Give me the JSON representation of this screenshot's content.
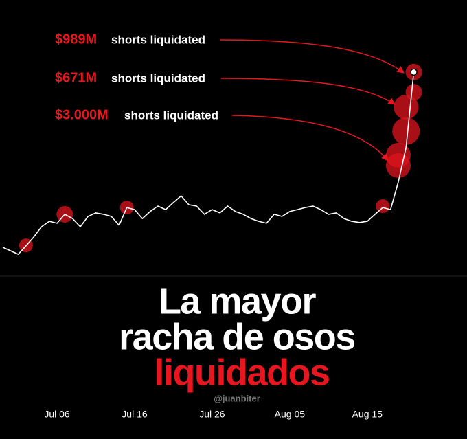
{
  "chart_data": {
    "type": "line",
    "x": [
      "Jun 29",
      "Jun 30",
      "Jul 01",
      "Jul 02",
      "Jul 03",
      "Jul 04",
      "Jul 05",
      "Jul 06",
      "Jul 07",
      "Jul 08",
      "Jul 09",
      "Jul 10",
      "Jul 11",
      "Jul 12",
      "Jul 13",
      "Jul 14",
      "Jul 15",
      "Jul 16",
      "Jul 17",
      "Jul 18",
      "Jul 19",
      "Jul 20",
      "Jul 21",
      "Jul 22",
      "Jul 23",
      "Jul 24",
      "Jul 25",
      "Jul 26",
      "Jul 27",
      "Jul 28",
      "Jul 29",
      "Jul 30",
      "Jul 31",
      "Aug 01",
      "Aug 02",
      "Aug 03",
      "Aug 04",
      "Aug 05",
      "Aug 06",
      "Aug 07",
      "Aug 08",
      "Aug 09",
      "Aug 10",
      "Aug 11",
      "Aug 12",
      "Aug 13",
      "Aug 14",
      "Aug 15",
      "Aug 16",
      "Aug 17",
      "Aug 18",
      "Aug 19",
      "Aug 20",
      "Aug 21"
    ],
    "series": [
      {
        "color": "#ffffff",
        "values": [
          11.8,
          10.3,
          8.8,
          12.4,
          16.2,
          20.6,
          22.9,
          22.1,
          25.9,
          24.1,
          20.6,
          25,
          26.5,
          25.9,
          25,
          21.2,
          28.8,
          27.9,
          24.1,
          27.1,
          29.4,
          27.9,
          30.9,
          33.8,
          30,
          29.4,
          25.9,
          27.9,
          26.5,
          29.4,
          27.1,
          25.9,
          24.1,
          22.9,
          22.1,
          25.9,
          25,
          27.1,
          27.9,
          28.8,
          29.4,
          27.9,
          25.9,
          26.5,
          24.1,
          22.9,
          22.4,
          22.9,
          25.9,
          28.8,
          27.9,
          39.7,
          54.4,
          86.8
        ]
      }
    ],
    "bubbles": {
      "color": "#e0141e",
      "x": [
        "Jul 02",
        "Jul 07",
        "Jul 15",
        "Aug 17",
        "Aug 19",
        "Aug 19",
        "Aug 20",
        "Aug 20",
        "Aug 21",
        "Aug 21"
      ],
      "values": [
        12.6,
        25.9,
        28.8,
        29.4,
        46.8,
        51.2,
        61.5,
        71.8,
        78.2,
        86.8
      ],
      "sizes": [
        10,
        12,
        10,
        10,
        18,
        18,
        20,
        18,
        12,
        12
      ]
    },
    "xlim": [
      "Jun 29",
      "Aug 26"
    ],
    "ylim": [
      0,
      100
    ],
    "xticks": [
      "Jul 06",
      "Jul 16",
      "Jul 26",
      "Aug 05",
      "Aug 15"
    ],
    "annotations": [
      {
        "amount": "$989M",
        "text": "shorts liquidated"
      },
      {
        "amount": "$671M",
        "text": "shorts liquidated"
      },
      {
        "amount": "$3.000M",
        "text": "shorts liquidated"
      }
    ],
    "title": [
      "La mayor",
      "racha de osos",
      "liquidados"
    ],
    "credit": "@juanbiter"
  }
}
